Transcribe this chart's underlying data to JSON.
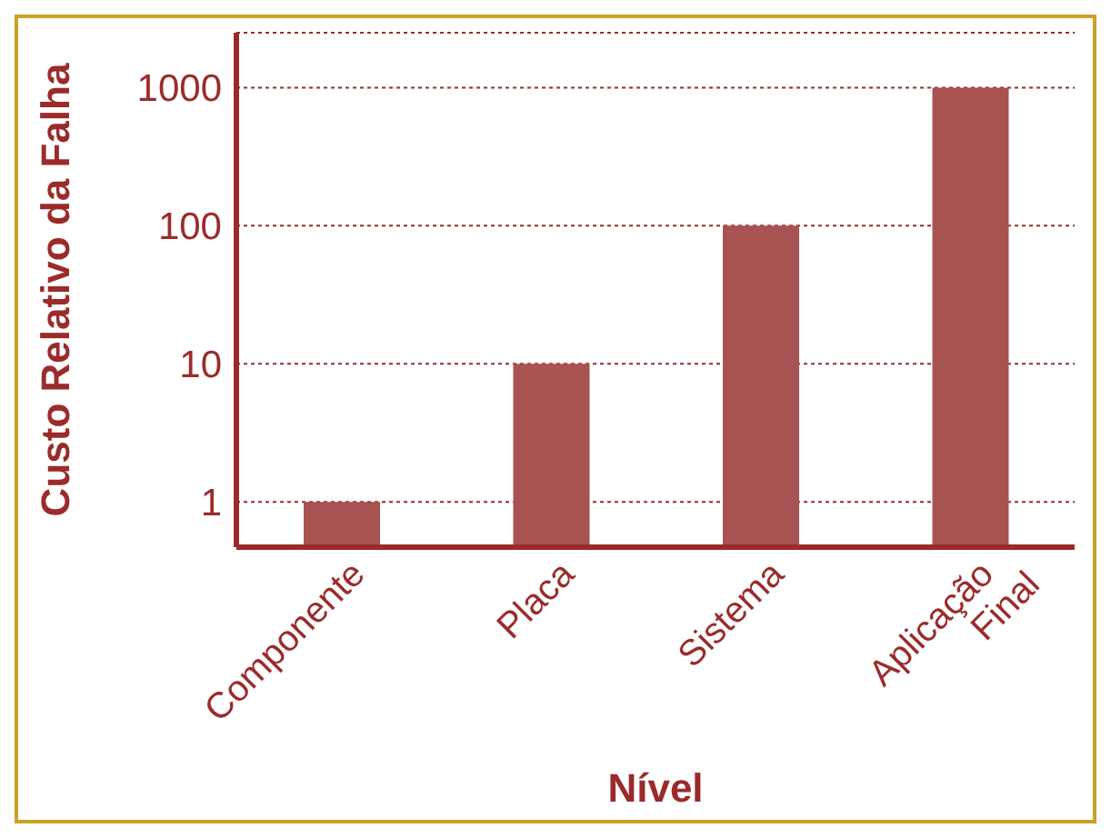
{
  "chart_data": {
    "type": "bar",
    "xlabel": "Nível",
    "ylabel": "Custo Relativo da Falha",
    "categories": [
      "Componente",
      "Placa",
      "Sistema",
      "Aplicação Final"
    ],
    "values": [
      1,
      10,
      100,
      1000
    ],
    "color": "#a85252",
    "log": "y",
    "ylim": [
      0.47,
      2500
    ],
    "yticks": [
      1,
      10,
      100,
      1000
    ],
    "grid": "y"
  }
}
